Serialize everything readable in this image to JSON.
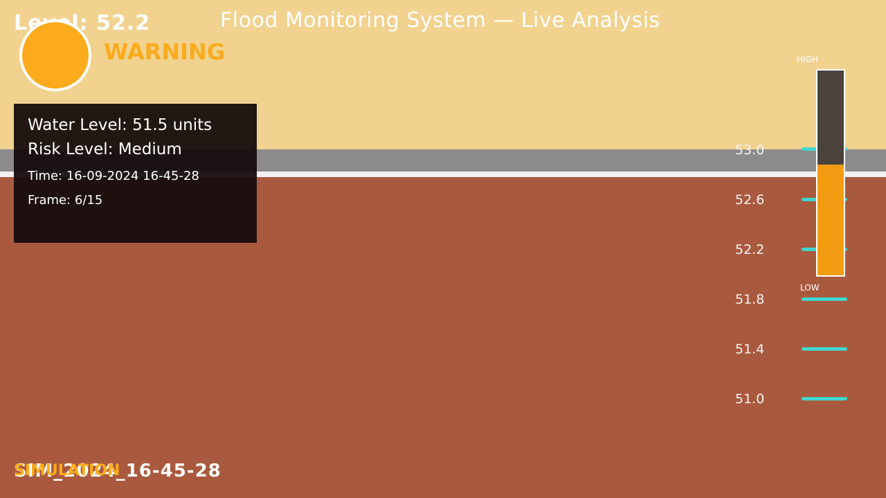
{
  "overlay": {
    "top_level": "Level: 52.2",
    "title": "Flood Monitoring System — Live Analysis",
    "status": "WARNING",
    "status_color": "#fbab1c"
  },
  "info_panel": {
    "water_level": "Water Level: 51.5 units",
    "risk_level": "Risk Level: Medium",
    "time": "Time: 16-09-2024 16-45-28",
    "frame": "Frame: 6/15"
  },
  "scale": {
    "marks": [
      "53.0",
      "52.6",
      "52.2",
      "51.8",
      "51.4",
      "51.0"
    ],
    "tick_color": "#3fd6d0"
  },
  "gauge": {
    "high_label": "HIGH",
    "low_label": "LOW",
    "fill_fraction": 0.54,
    "fill_color": "#f39c12"
  },
  "footer": {
    "timestamp": "SIM_2024_16-45-28",
    "mode": "SIMULATION"
  }
}
